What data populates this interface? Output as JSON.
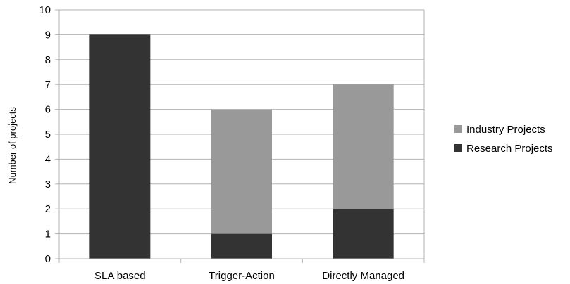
{
  "chart_data": {
    "type": "bar",
    "stacked": true,
    "categories": [
      "SLA based",
      "Trigger-Action",
      "Directly Managed"
    ],
    "series": [
      {
        "name": "Research Projects",
        "values": [
          9,
          1,
          2
        ],
        "color": "#333333"
      },
      {
        "name": "Industry Projects",
        "values": [
          0,
          5,
          5
        ],
        "color": "#999999"
      }
    ],
    "title": "",
    "xlabel": "",
    "ylabel": "Number of projects",
    "ylim": [
      0,
      10
    ],
    "yticks": [
      "0",
      "1",
      "2",
      "3",
      "4",
      "5",
      "6",
      "7",
      "8",
      "9",
      "10"
    ],
    "grid": true,
    "legend_position": "right"
  }
}
